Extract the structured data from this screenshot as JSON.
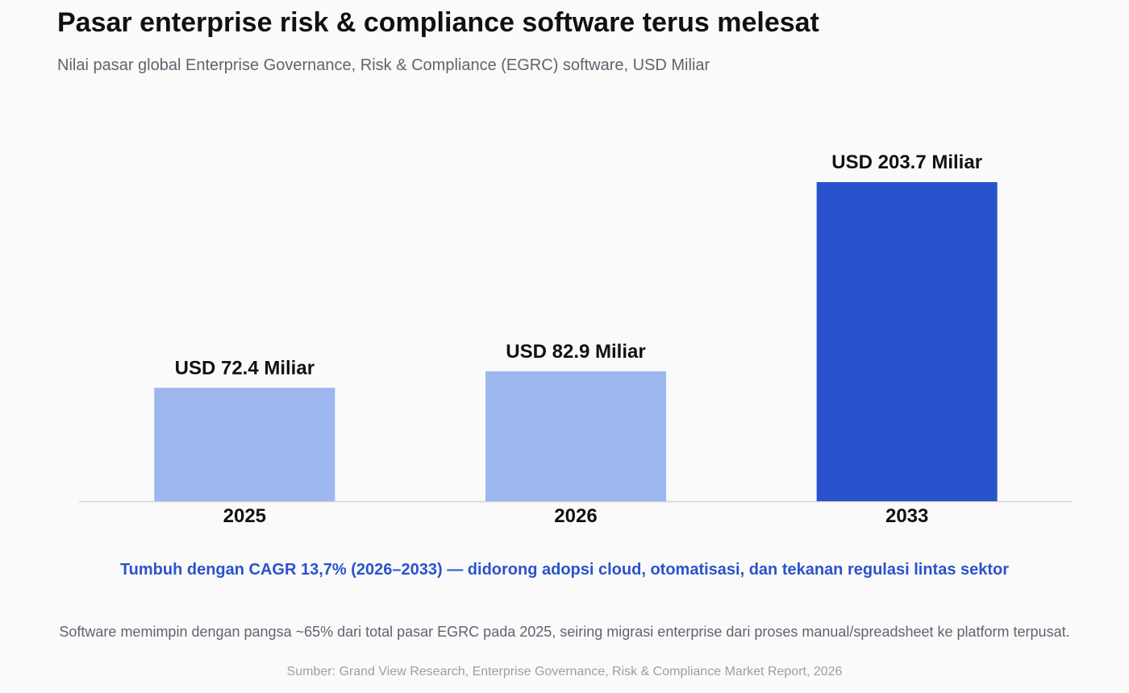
{
  "header": {
    "title": "Pasar enterprise risk & compliance software terus melesat",
    "subtitle": "Nilai pasar global Enterprise Governance, Risk & Compliance (EGRC) software, USD Miliar"
  },
  "chart_data": {
    "type": "bar",
    "categories": [
      "2025",
      "2026",
      "2033"
    ],
    "values": [
      72.4,
      82.9,
      203.7
    ],
    "data_labels": [
      "USD 72.4 Miliar",
      "USD 82.9 Miliar",
      "USD 203.7 Miliar"
    ],
    "bar_colors": [
      "#9db6ee",
      "#9db6ee",
      "#2a52cc"
    ],
    "xlabel": "",
    "ylabel": "",
    "ylim": [
      0,
      230
    ],
    "grid": false,
    "legend": "none"
  },
  "callout": {
    "text": "Tumbuh dengan CAGR 13,7% (2026–2033) — didorong adopsi cloud, otomatisasi, dan tekanan regulasi lintas sektor",
    "color": "#2a52cc"
  },
  "note": "Software memimpin dengan pangsa ~65% dari total pasar EGRC pada 2025, seiring migrasi enterprise dari proses manual/spreadsheet ke platform terpusat.",
  "source": "Sumber: Grand View Research, Enterprise Governance, Risk & Compliance Market Report, 2026"
}
